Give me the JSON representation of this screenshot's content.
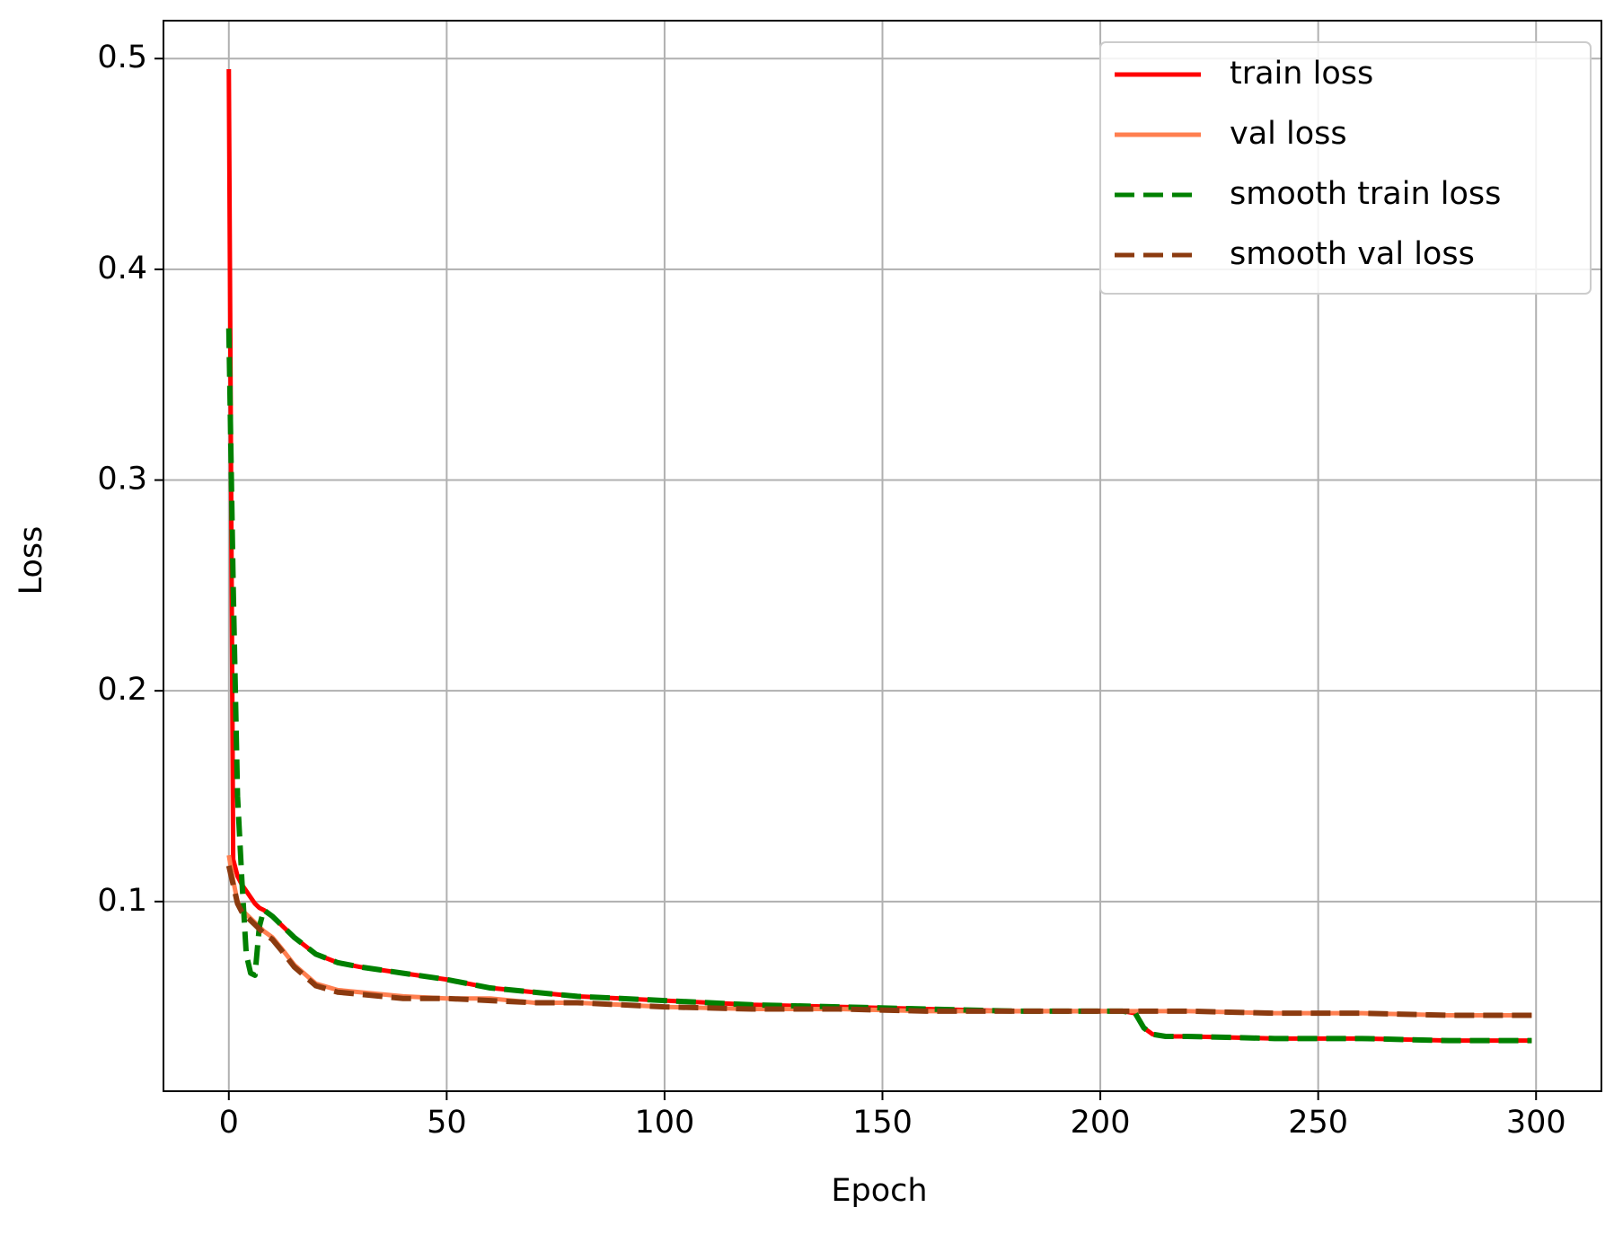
{
  "chart_data": {
    "type": "line",
    "x_label": "Epoch",
    "y_label": "Loss",
    "x": [
      0,
      1,
      2,
      3,
      4,
      5,
      6,
      7,
      8,
      10,
      12,
      15,
      20,
      25,
      30,
      40,
      50,
      60,
      70,
      80,
      90,
      100,
      120,
      140,
      160,
      180,
      200,
      205,
      208,
      210,
      212,
      215,
      220,
      240,
      260,
      280,
      299
    ],
    "series": [
      {
        "name": "train loss",
        "color": "#ff0000",
        "dash": "solid",
        "values": [
          0.495,
          0.12,
          0.112,
          0.108,
          0.105,
          0.102,
          0.099,
          0.097,
          0.096,
          0.093,
          0.089,
          0.083,
          0.075,
          0.071,
          0.069,
          0.066,
          0.063,
          0.059,
          0.057,
          0.055,
          0.054,
          0.053,
          0.051,
          0.05,
          0.049,
          0.048,
          0.048,
          0.048,
          0.047,
          0.04,
          0.037,
          0.036,
          0.036,
          0.035,
          0.035,
          0.034,
          0.034
        ]
      },
      {
        "name": "val loss",
        "color": "#ff7f50",
        "dash": "solid",
        "values": [
          0.122,
          0.11,
          0.1,
          0.096,
          0.094,
          0.092,
          0.09,
          0.088,
          0.086,
          0.083,
          0.078,
          0.07,
          0.061,
          0.058,
          0.057,
          0.055,
          0.054,
          0.054,
          0.052,
          0.052,
          0.051,
          0.05,
          0.049,
          0.049,
          0.048,
          0.048,
          0.048,
          0.048,
          0.048,
          0.048,
          0.048,
          0.048,
          0.048,
          0.047,
          0.047,
          0.046,
          0.046
        ]
      },
      {
        "name": "smooth train loss",
        "color": "#008000",
        "dash": "dashed",
        "values": [
          0.372,
          0.25,
          0.15,
          0.11,
          0.075,
          0.066,
          0.065,
          0.088,
          0.096,
          0.093,
          0.089,
          0.083,
          0.075,
          0.071,
          0.069,
          0.066,
          0.063,
          0.059,
          0.057,
          0.055,
          0.054,
          0.053,
          0.051,
          0.05,
          0.049,
          0.048,
          0.048,
          0.048,
          0.047,
          0.04,
          0.037,
          0.036,
          0.036,
          0.035,
          0.035,
          0.034,
          0.034
        ]
      },
      {
        "name": "smooth val loss",
        "color": "#8b3a0f",
        "dash": "dashed",
        "values": [
          0.117,
          0.108,
          0.099,
          0.095,
          0.093,
          0.091,
          0.089,
          0.087,
          0.085,
          0.082,
          0.077,
          0.069,
          0.06,
          0.057,
          0.056,
          0.054,
          0.054,
          0.053,
          0.052,
          0.052,
          0.051,
          0.05,
          0.049,
          0.049,
          0.048,
          0.048,
          0.048,
          0.048,
          0.048,
          0.048,
          0.048,
          0.048,
          0.048,
          0.047,
          0.047,
          0.046,
          0.046
        ]
      }
    ],
    "xlim": [
      -15,
      315
    ],
    "ylim": [
      0.01,
      0.518
    ],
    "xticks": [
      0,
      50,
      100,
      150,
      200,
      250,
      300
    ],
    "yticks": [
      0.1,
      0.2,
      0.3,
      0.4,
      0.5
    ],
    "grid": true,
    "legend": "upper-right"
  }
}
